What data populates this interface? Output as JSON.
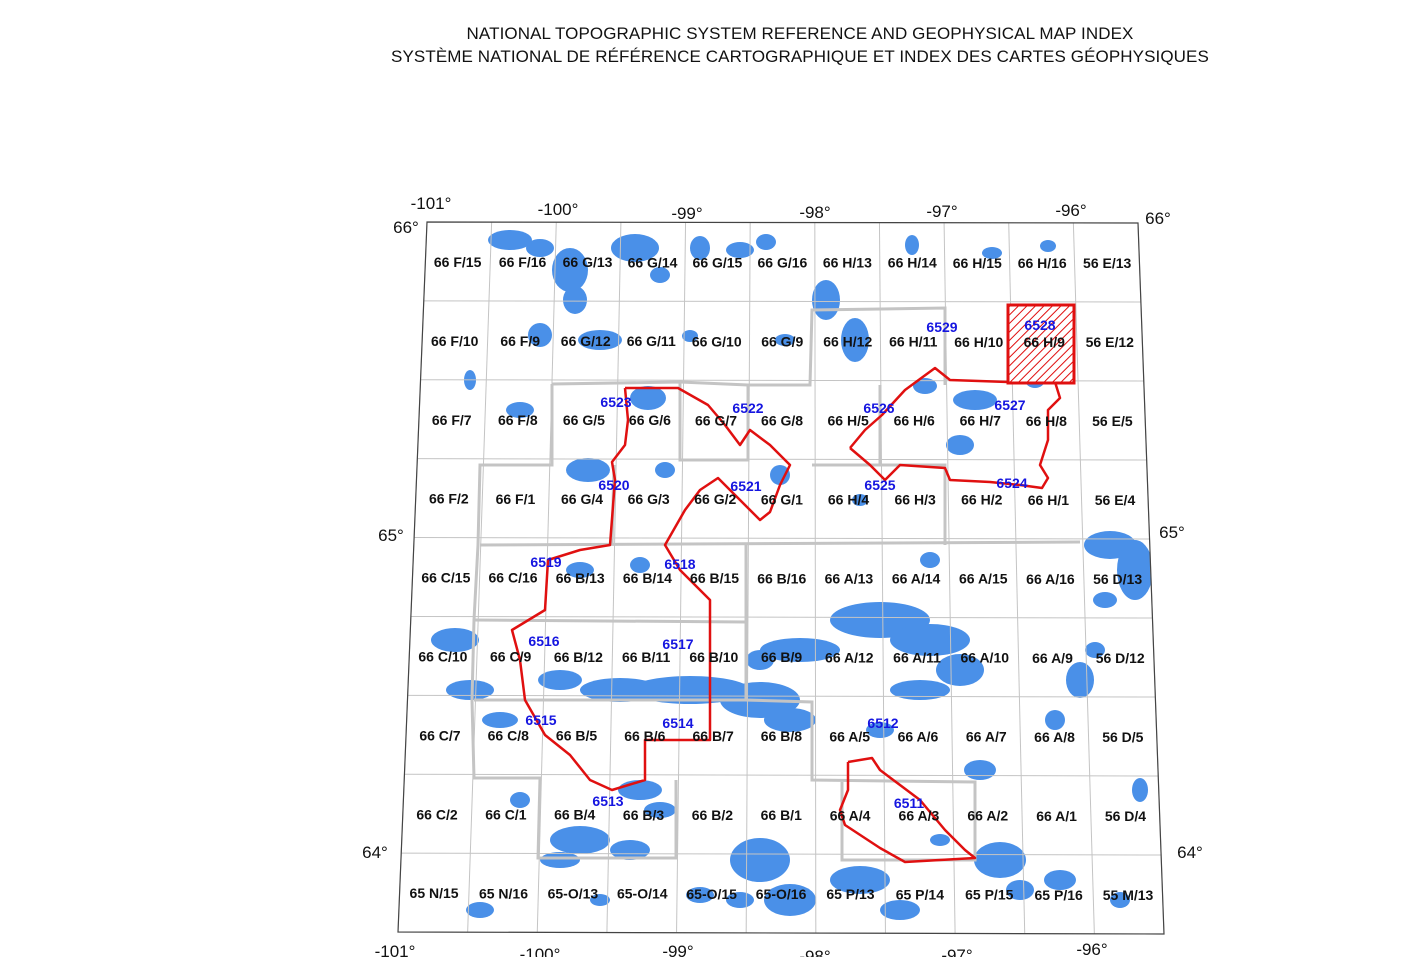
{
  "title": {
    "line1": "NATIONAL TOPOGRAPHIC SYSTEM REFERENCE AND GEOPHYSICAL MAP INDEX",
    "line2": "SYSTÈME NATIONAL DE RÉFÉRENCE CARTOGRAPHIQUE ET INDEX DES CARTES GÉOPHYSIQUES"
  },
  "map": {
    "colors": {
      "water": "#4a90e8",
      "grid": "#c4c4c4",
      "cluster_outline": "#e01010",
      "cluster_label": "#1515e0",
      "sheet_label": "#111111"
    },
    "longitude_labels": [
      "-101°",
      "-100°",
      "-99°",
      "-98°",
      "-97°",
      "-96°"
    ],
    "latitude_labels_left": [
      "66°",
      "65°",
      "64°"
    ],
    "latitude_labels_right": [
      "66°",
      "65°",
      "64°"
    ],
    "nts_sheets": [
      [
        "66 F/15",
        "66 F/16",
        "66 G/13",
        "66 G/14",
        "66 G/15",
        "66 G/16",
        "66 H/13",
        "66 H/14",
        "66 H/15",
        "66 H/16",
        "56 E/13"
      ],
      [
        "66 F/10",
        "66 F/9",
        "66 G/12",
        "66 G/11",
        "66 G/10",
        "66 G/9",
        "66 H/12",
        "66 H/11",
        "66 H/10",
        "66 H/9",
        "56 E/12"
      ],
      [
        "66 F/7",
        "66 F/8",
        "66 G/5",
        "66 G/6",
        "66 G/7",
        "66 G/8",
        "66 H/5",
        "66 H/6",
        "66 H/7",
        "66 H/8",
        "56 E/5"
      ],
      [
        "66 F/2",
        "66 F/1",
        "66 G/4",
        "66 G/3",
        "66 G/2",
        "66 G/1",
        "66 H/4",
        "66 H/3",
        "66 H/2",
        "66 H/1",
        "56 E/4"
      ],
      [
        "66 C/15",
        "66 C/16",
        "66 B/13",
        "66 B/14",
        "66 B/15",
        "66 B/16",
        "66 A/13",
        "66 A/14",
        "66 A/15",
        "66 A/16",
        "56 D/13"
      ],
      [
        "66 C/10",
        "66 C/9",
        "66 B/12",
        "66 B/11",
        "66 B/10",
        "66 B/9",
        "66 A/12",
        "66 A/11",
        "66 A/10",
        "66 A/9",
        "56 D/12"
      ],
      [
        "66 C/7",
        "66 C/8",
        "66 B/5",
        "66 B/6",
        "66 B/7",
        "66 B/8",
        "66 A/5",
        "66 A/6",
        "66 A/7",
        "66 A/8",
        "56 D/5"
      ],
      [
        "66 C/2",
        "66 C/1",
        "66 B/4",
        "66 B/3",
        "66 B/2",
        "66 B/1",
        "66 A/4",
        "66 A/3",
        "66 A/2",
        "66 A/1",
        "56 D/4"
      ],
      [
        "65 N/15",
        "65 N/16",
        "65-O/13",
        "65-O/14",
        "65-O/15",
        "65-O/16",
        "65 P/13",
        "65 P/14",
        "65 P/15",
        "65 P/16",
        "55 M/13"
      ]
    ],
    "survey_clusters": [
      "6511",
      "6512",
      "6513",
      "6514",
      "6515",
      "6516",
      "6517",
      "6518",
      "6519",
      "6520",
      "6521",
      "6522",
      "6523",
      "6524",
      "6525",
      "6526",
      "6527",
      "6528",
      "6529"
    ],
    "highlighted_cluster": "6528"
  }
}
